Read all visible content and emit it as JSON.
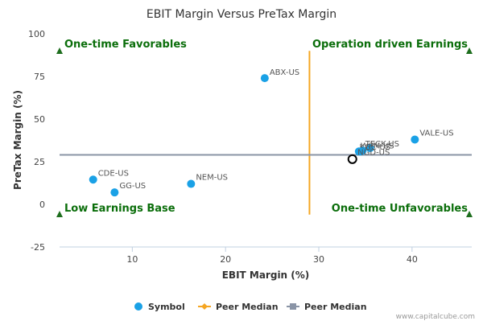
{
  "chart_data": {
    "type": "scatter",
    "title": "EBIT Margin Versus PreTax Margin",
    "xlabel": "EBIT Margin (%)",
    "ylabel": "PreTax Margin (%)",
    "xlim": [
      2.2,
      46.4
    ],
    "ylim": [
      -25,
      100
    ],
    "x_ticks": [
      10,
      20,
      30,
      40
    ],
    "y_ticks": [
      -25,
      0,
      25,
      50,
      75,
      100
    ],
    "grid": false,
    "legend_position": "bottom-center",
    "colors": {
      "symbol": "#1aa1e6",
      "peer_median_x": "#f5a623",
      "peer_median_y": "#8a94a6",
      "quadrant_text": "#0b6e0b",
      "marker": "#1e6e1e"
    },
    "series": [
      {
        "name": "Symbol",
        "points": [
          {
            "label": "ABX-US",
            "x": 24.2,
            "y": 74
          },
          {
            "label": "VALE-US",
            "x": 40.3,
            "y": 38
          },
          {
            "label": "TECK-US",
            "x": 35.5,
            "y": 33
          },
          {
            "label": "WPM-US",
            "x": 34.3,
            "y": 31
          },
          {
            "label": "KGC-US",
            "x": 34.7,
            "y": 31.5
          },
          {
            "label": "NGD-US",
            "x": 34.5,
            "y": 31
          },
          {
            "label": "CDE-US",
            "x": 5.8,
            "y": 14.5
          },
          {
            "label": "GG-US",
            "x": 8.1,
            "y": 7
          },
          {
            "label": "NEM-US",
            "x": 16.3,
            "y": 12
          }
        ]
      },
      {
        "name": "Peer Median",
        "x": 29
      },
      {
        "name": "Peer Median",
        "y": 29
      }
    ],
    "highlight": {
      "x": 33.6,
      "y": 26.5
    },
    "quadrants": {
      "top_left": "One-time Favorables",
      "top_right": "Operation driven Earnings",
      "bottom_left": "Low Earnings Base",
      "bottom_right": "One-time Unfavorables"
    },
    "watermark": "www.capitalcube.com"
  }
}
